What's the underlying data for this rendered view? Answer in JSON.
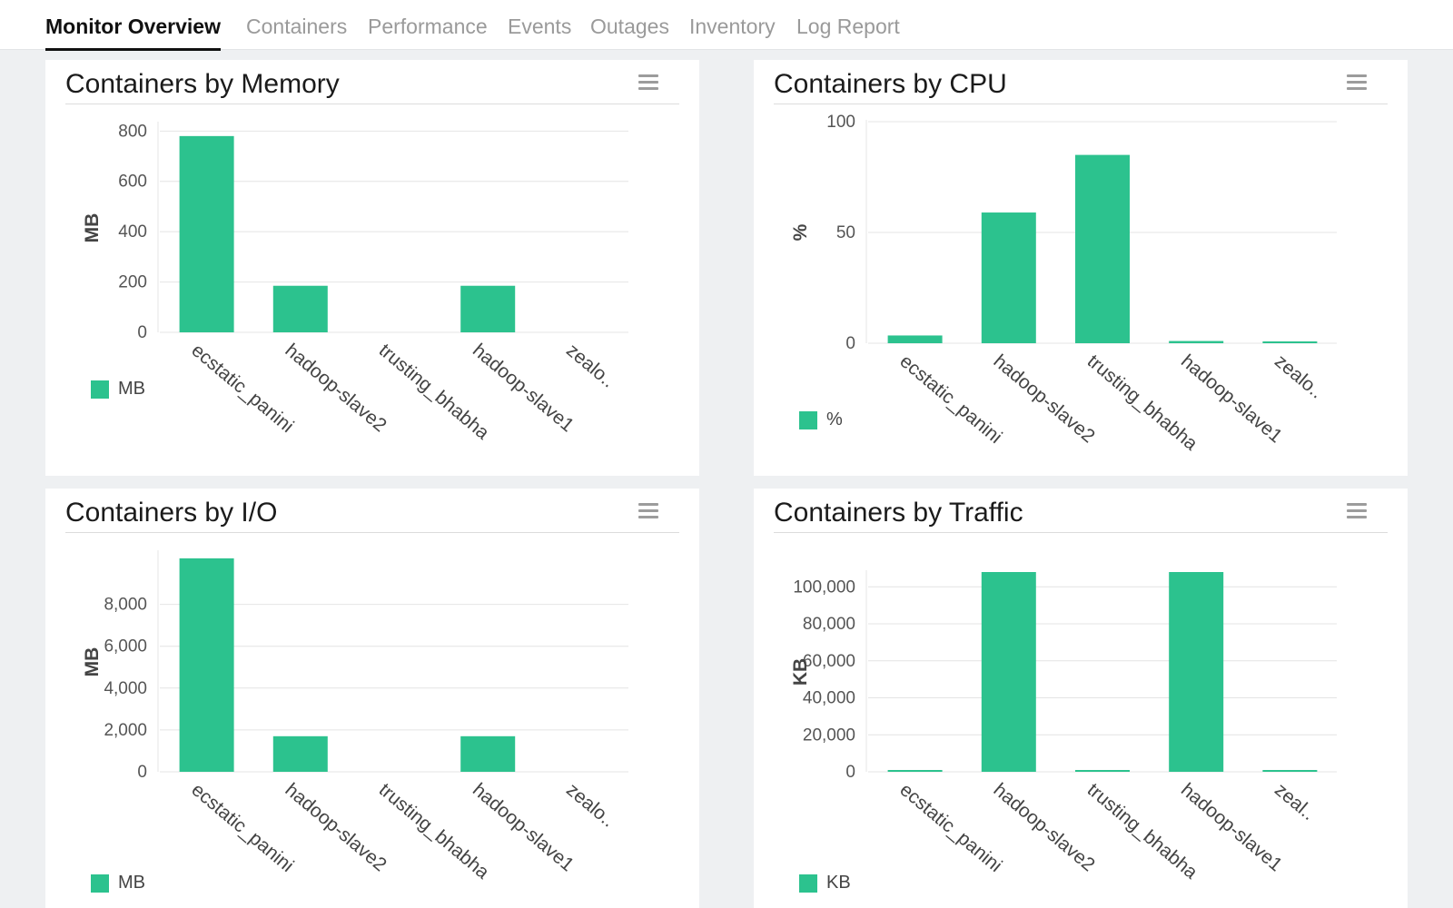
{
  "tabs": [
    {
      "label": "Monitor Overview",
      "active": true
    },
    {
      "label": "Containers",
      "active": false
    },
    {
      "label": "Performance",
      "active": false
    },
    {
      "label": "Events",
      "active": false
    },
    {
      "label": "Outages",
      "active": false
    },
    {
      "label": "Inventory",
      "active": false
    },
    {
      "label": "Log Report",
      "active": false
    }
  ],
  "bar_color": "#2cc28e",
  "panels": [
    {
      "title": "Containers by Memory",
      "menu_icon": "hamburger-menu-icon"
    },
    {
      "title": "Containers by CPU",
      "menu_icon": "hamburger-menu-icon"
    },
    {
      "title": "Containers by I/O",
      "menu_icon": "hamburger-menu-icon"
    },
    {
      "title": "Containers by Traffic",
      "menu_icon": "hamburger-menu-icon"
    }
  ],
  "chart_data": [
    {
      "type": "bar",
      "title": "Containers by Memory",
      "categories": [
        "ecstatic_panini",
        "hadoop-slave2",
        "trusting_bhabha",
        "hadoop-slave1",
        "zealo.."
      ],
      "series": [
        {
          "name": "MB",
          "values": [
            780,
            185,
            0,
            185,
            0
          ]
        }
      ],
      "ylabel": "MB",
      "ylim": [
        0,
        830
      ],
      "yticks": [
        0,
        200,
        400,
        600,
        800
      ],
      "ytick_labels": [
        "0",
        "200",
        "400",
        "600",
        "800"
      ],
      "grid": true,
      "legend": "bottom-left",
      "legend_label": "MB"
    },
    {
      "type": "bar",
      "title": "Containers by CPU",
      "categories": [
        "ecstatic_panini",
        "hadoop-slave2",
        "trusting_bhabha",
        "hadoop-slave1",
        "zealo.."
      ],
      "series": [
        {
          "name": "%",
          "values": [
            3.5,
            59,
            85,
            1,
            0.6
          ]
        }
      ],
      "ylabel": "%",
      "ylim": [
        0,
        100
      ],
      "yticks": [
        0,
        50,
        100
      ],
      "ytick_labels": [
        "0",
        "50",
        "100"
      ],
      "grid": true,
      "legend": "bottom-left",
      "legend_label": "%"
    },
    {
      "type": "bar",
      "title": "Containers by I/O",
      "categories": [
        "ecstatic_panini",
        "hadoop-slave2",
        "trusting_bhabha",
        "hadoop-slave1",
        "zealo.."
      ],
      "series": [
        {
          "name": "MB",
          "values": [
            10200,
            1700,
            0,
            1700,
            0
          ]
        }
      ],
      "ylabel": "MB",
      "ylim": [
        0,
        10500
      ],
      "yticks": [
        0,
        2000,
        4000,
        6000,
        8000
      ],
      "ytick_labels": [
        "0",
        "2,000",
        "4,000",
        "6,000",
        "8,000"
      ],
      "grid": true,
      "legend": "bottom-left",
      "legend_label": "MB"
    },
    {
      "type": "bar",
      "title": "Containers by Traffic",
      "categories": [
        "ecstatic_panini",
        "hadoop-slave2",
        "trusting_bhabha",
        "hadoop-slave1",
        "zeal.."
      ],
      "series": [
        {
          "name": "KB",
          "values": [
            500,
            108000,
            300,
            108000,
            300
          ]
        }
      ],
      "ylabel": "KB",
      "ylim": [
        0,
        108000
      ],
      "yticks": [
        0,
        20000,
        40000,
        60000,
        80000,
        100000
      ],
      "ytick_labels": [
        "0",
        "20,000",
        "40,000",
        "60,000",
        "80,000",
        "100,000"
      ],
      "grid": true,
      "legend": "bottom-left",
      "legend_label": "KB"
    }
  ]
}
